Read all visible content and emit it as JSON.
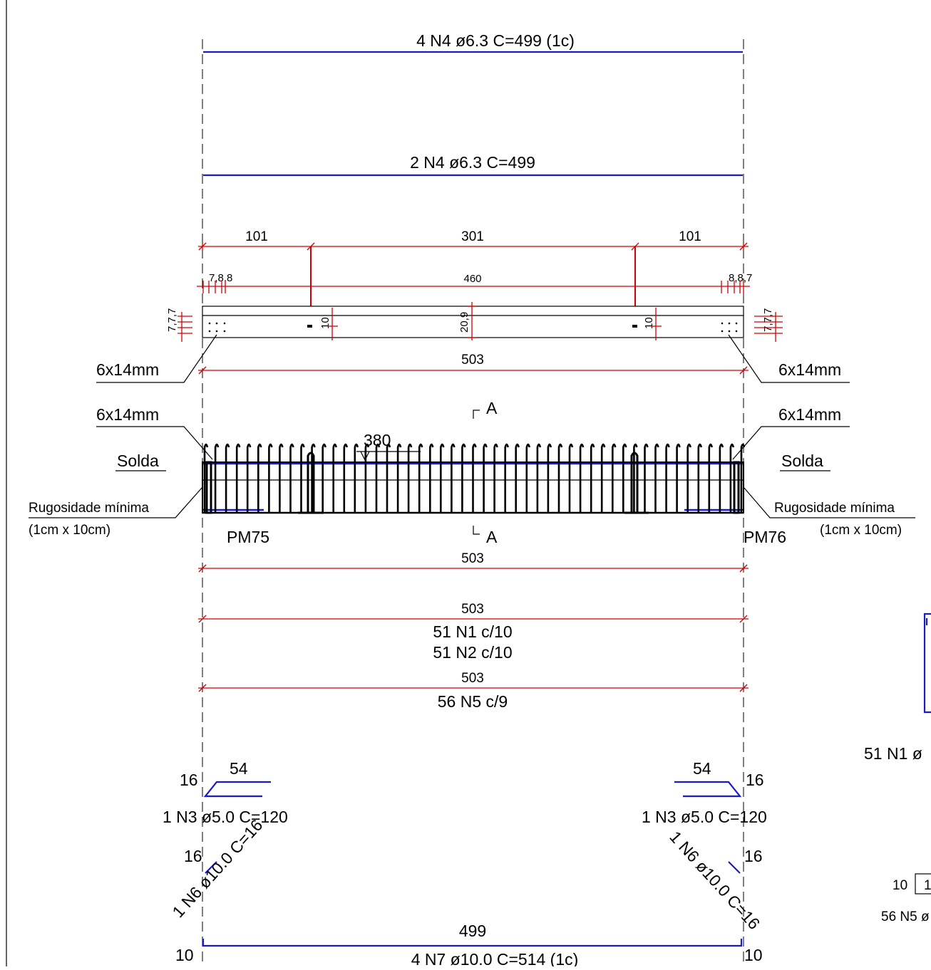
{
  "top_bars": {
    "bar1_label": "4 N4 ø6.3 C=499  (1c)",
    "bar2_label": "2 N4 ø6.3 C=499"
  },
  "plan_dims": {
    "d_left": "101",
    "d_mid": "301",
    "d_right": "101",
    "small_left": "7,8,8",
    "inner": "460",
    "small_right": "8,8,7",
    "hole_left": "10",
    "hole_right": "10",
    "height": "20,9",
    "side_left": "7,7,7",
    "side_right": "7,7,7",
    "overall": "503"
  },
  "callouts": {
    "plate_top_left": "6x14mm",
    "plate_top_right": "6x14mm",
    "plate_elev_left": "6x14mm",
    "plate_elev_right": "6x14mm",
    "solda_left": "Solda",
    "solda_right": "Solda",
    "rug_left": "Rugosidade mínima",
    "rug_left2": "(1cm x 10cm)",
    "rug_right": "Rugosidade mínima",
    "rug_right2": "(1cm x 10cm)"
  },
  "section": {
    "top": "A",
    "bottom": "A"
  },
  "elevation": {
    "dim_380": "380",
    "pillar_left": "PM75",
    "pillar_right": "PM76"
  },
  "stirrup_dims": {
    "d1": "503",
    "d2": "503",
    "d3": "503",
    "n1": "51 N1 c/10",
    "n2": "51 N2 c/10",
    "n5": "56 N5 c/9"
  },
  "details": {
    "n3_left_a": "16",
    "n3_left_b": "54",
    "n3_left_label": "1 N3 ø5.0 C=120",
    "n3_right_a": "16",
    "n3_right_b": "54",
    "n3_right_label": "1 N3 ø5.0 C=120",
    "n6_left_a": "16",
    "n6_left_label": "1 N6 ø10.0 C=16",
    "n6_right_a": "16",
    "n6_right_label": "1 N6 ø10.0 C=16",
    "n7_left": "10",
    "n7_right": "10",
    "n7_len": "499",
    "n7_label": "4 N7 ø10.0 C=514  (1c)"
  },
  "right_partial": {
    "n1": "51 N1 ø",
    "box_left": "10",
    "box_num": "1",
    "n5": "56 N5 ø"
  }
}
